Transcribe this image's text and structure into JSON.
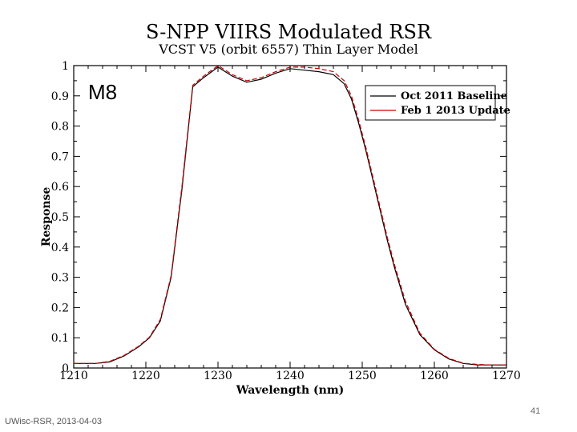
{
  "footer": {
    "left": "UWisc-RSR, 2013-04-03",
    "page_number": "41"
  },
  "panel_label": "M8",
  "chart_data": {
    "type": "line",
    "title": "S-NPP VIIRS Modulated RSR",
    "subtitle": "VCST V5 (orbit 6557) Thin Layer Model",
    "xlabel": "Wavelength (nm)",
    "ylabel": "Response",
    "xlim": [
      1210,
      1270
    ],
    "ylim": [
      0,
      1
    ],
    "xticks": [
      1210,
      1220,
      1230,
      1240,
      1250,
      1260,
      1270
    ],
    "xtick_labels": [
      "1210",
      "1220",
      "1230",
      "1240",
      "1250",
      "1260",
      "1270"
    ],
    "yticks": [
      0,
      0.1,
      0.2,
      0.3,
      0.4,
      0.5,
      0.6,
      0.7,
      0.8,
      0.9,
      1
    ],
    "ytick_labels": [
      "0",
      "0.1",
      "0.2",
      "0.3",
      "0.4",
      "0.5",
      "0.6",
      "0.7",
      "0.8",
      "0.9",
      "1"
    ],
    "grid": false,
    "legend_position": "top-right",
    "series": [
      {
        "name": "Oct 2011 Baseline",
        "color": "#000000",
        "x": [
          1210,
          1213,
          1215,
          1217,
          1219,
          1220.5,
          1222,
          1223.5,
          1225,
          1226.5,
          1228,
          1230,
          1232,
          1234,
          1236,
          1238,
          1240,
          1242,
          1244,
          1246,
          1247.5,
          1248.5,
          1249.5,
          1250.5,
          1251.5,
          1252.5,
          1253.5,
          1254.5,
          1256,
          1258,
          1260,
          1262,
          1264,
          1266,
          1268,
          1270
        ],
        "y": [
          0.015,
          0.015,
          0.02,
          0.04,
          0.07,
          0.1,
          0.155,
          0.3,
          0.59,
          0.93,
          0.96,
          0.995,
          0.965,
          0.945,
          0.955,
          0.975,
          0.99,
          0.985,
          0.98,
          0.97,
          0.94,
          0.89,
          0.81,
          0.72,
          0.62,
          0.52,
          0.42,
          0.33,
          0.21,
          0.11,
          0.06,
          0.03,
          0.015,
          0.01,
          0.01,
          0.01
        ]
      },
      {
        "name": "Feb 1 2013 Update",
        "color": "#cc0000",
        "x": [
          1210,
          1213,
          1215,
          1217,
          1219,
          1220.5,
          1222,
          1223.5,
          1225,
          1226.5,
          1228,
          1230,
          1232,
          1234,
          1236,
          1238,
          1240,
          1242,
          1244,
          1246,
          1247.5,
          1248.5,
          1249.5,
          1250.5,
          1251.5,
          1252.5,
          1253.5,
          1254.5,
          1256,
          1258,
          1260,
          1262,
          1264,
          1266,
          1268,
          1270
        ],
        "y": [
          0.015,
          0.015,
          0.022,
          0.042,
          0.072,
          0.102,
          0.16,
          0.305,
          0.6,
          0.935,
          0.965,
          1.0,
          0.97,
          0.95,
          0.96,
          0.98,
          0.995,
          0.995,
          0.99,
          0.98,
          0.95,
          0.9,
          0.82,
          0.73,
          0.63,
          0.53,
          0.43,
          0.34,
          0.22,
          0.115,
          0.062,
          0.032,
          0.016,
          0.012,
          0.01,
          0.01
        ]
      }
    ]
  }
}
